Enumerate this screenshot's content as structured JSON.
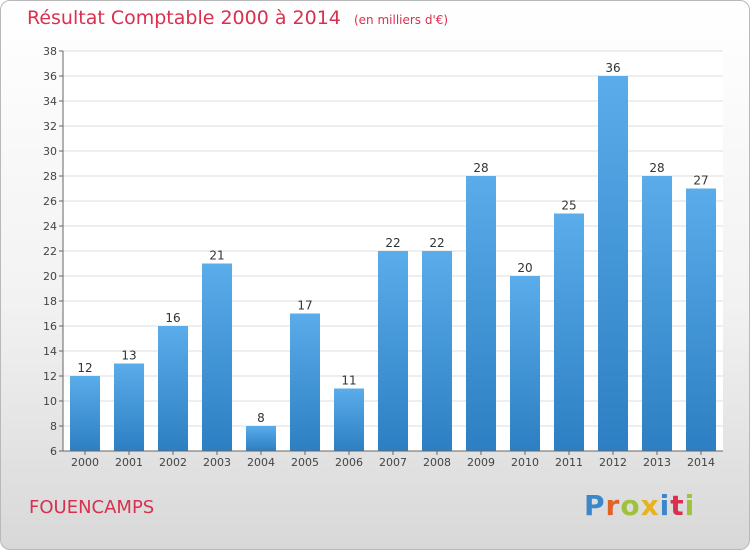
{
  "title": "Résultat Comptable 2000 à 2014",
  "subtitle": "(en milliers d'€)",
  "place": "FOUENCAMPS",
  "logo": {
    "text": "Proxiti",
    "letter_colors": [
      "#3b87c8",
      "#e0632b",
      "#9ec23b",
      "#e8b21f",
      "#3b87c8",
      "#d9304f",
      "#9ec23b"
    ]
  },
  "colors": {
    "bar_top": "#5aacea",
    "bar_bottom": "#2c7fc2",
    "accent": "#d9304f"
  },
  "chart_data": {
    "type": "bar",
    "categories": [
      "2000",
      "2001",
      "2002",
      "2003",
      "2004",
      "2005",
      "2006",
      "2007",
      "2008",
      "2009",
      "2010",
      "2011",
      "2012",
      "2013",
      "2014"
    ],
    "values": [
      12,
      13,
      16,
      21,
      8,
      17,
      11,
      22,
      22,
      28,
      20,
      25,
      36,
      28,
      27
    ],
    "data_labels": [
      "12",
      "13",
      "16",
      "21",
      "8",
      "17",
      "11",
      "22",
      "22",
      "28",
      "20",
      "25",
      "36",
      "28",
      "27"
    ],
    "title": "Résultat Comptable 2000 à 2014",
    "subtitle": "(en milliers d'€)",
    "ylim": [
      6,
      38
    ],
    "yticks": [
      6,
      8,
      10,
      12,
      14,
      16,
      18,
      20,
      22,
      24,
      26,
      28,
      30,
      32,
      34,
      36,
      38
    ],
    "grid": true,
    "legend": "none"
  }
}
